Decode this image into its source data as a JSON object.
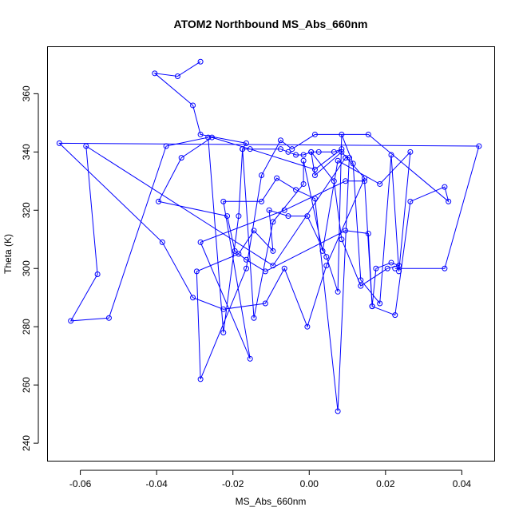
{
  "chart_data": {
    "type": "line",
    "title": "ATOM2 Northbound MS_Abs_660nm",
    "xlabel": "MS_Abs_660nm",
    "ylabel": "Theta (K)",
    "xlim": [
      -0.0685,
      0.0485
    ],
    "ylim": [
      234,
      376
    ],
    "xticks": [
      -0.06,
      -0.04,
      -0.02,
      0.0,
      0.02,
      0.04
    ],
    "xtick_labels": [
      "-0.06",
      "-0.04",
      "-0.02",
      "0.00",
      "0.02",
      "0.04"
    ],
    "yticks": [
      240,
      260,
      280,
      300,
      320,
      340,
      360
    ],
    "ytick_labels": [
      "240",
      "260",
      "280",
      "300",
      "320",
      "340",
      "360"
    ],
    "grid": false,
    "marker": "open-circle",
    "color": "#0000ff",
    "series": [
      {
        "x": [
          -0.0285,
          -0.0345,
          -0.0405,
          -0.0305,
          -0.0285,
          -0.0165,
          -0.0175,
          -0.0075,
          -0.0055,
          -0.0035,
          -0.0015,
          0.0005,
          0.0025,
          0.0065,
          0.0085,
          0.0015,
          -0.0155,
          -0.0255,
          -0.0335,
          -0.0395,
          -0.0215,
          -0.0195,
          -0.0165,
          -0.0115,
          0.0095,
          0.0155,
          0.0165,
          0.0225,
          0.0265,
          0.0355,
          0.0365,
          0.0155,
          0.0015,
          -0.0045,
          -0.0075,
          -0.0125,
          -0.0165,
          -0.0285,
          -0.0295,
          -0.0185,
          -0.0145,
          -0.0095,
          -0.0105,
          -0.0055,
          -0.0005,
          0.0045,
          0.0075,
          0.0085,
          0.0115,
          0.0135,
          0.0185,
          0.0215,
          0.0235,
          0.0265,
          0.0185,
          0.0075,
          0.0035,
          -0.0015,
          -0.0015,
          -0.0095,
          -0.0145,
          -0.0175,
          -0.0185,
          -0.0225,
          -0.0265,
          -0.0375,
          -0.0525,
          -0.0625,
          -0.0555,
          -0.0585,
          -0.0095,
          0.0095,
          0.0105,
          0.0075,
          0.0015,
          -0.0035,
          -0.0085,
          -0.0125,
          -0.0225,
          -0.0155,
          -0.0285,
          -0.0065,
          0.0095,
          0.0145,
          0.0165,
          0.0175,
          0.0215,
          0.0235,
          0.0205,
          0.0135,
          0.0085,
          0.0065,
          0.0005,
          0.0015,
          0.0085,
          0.0145,
          0.0045,
          -0.0005,
          -0.0065,
          -0.0115,
          -0.0225,
          -0.0305,
          -0.0385,
          -0.0655,
          0.0445,
          0.0355,
          0.0225
        ],
        "y": [
          371,
          366,
          367,
          356,
          346,
          343,
          341,
          341,
          340,
          339,
          339,
          340,
          340,
          340,
          341,
          334,
          341,
          345,
          338,
          323,
          318,
          306,
          303,
          299,
          313,
          312,
          287,
          284,
          323,
          328,
          323,
          346,
          346,
          341,
          344,
          332,
          300,
          262,
          299,
          305,
          313,
          306,
          320,
          318,
          318,
          304,
          292,
          346,
          336,
          296,
          288,
          339,
          299,
          340,
          329,
          337,
          306,
          337,
          329,
          316,
          283,
          341,
          318,
          278,
          345,
          342,
          283,
          282,
          298,
          342,
          301,
          338,
          338,
          251,
          324,
          327,
          331,
          323,
          323,
          269,
          309,
          320,
          330,
          330,
          287,
          300,
          302,
          301,
          300,
          294,
          310,
          330,
          340,
          332,
          340,
          331,
          301,
          280,
          300,
          288,
          286,
          290,
          309,
          343,
          342,
          300,
          300
        ]
      }
    ]
  }
}
